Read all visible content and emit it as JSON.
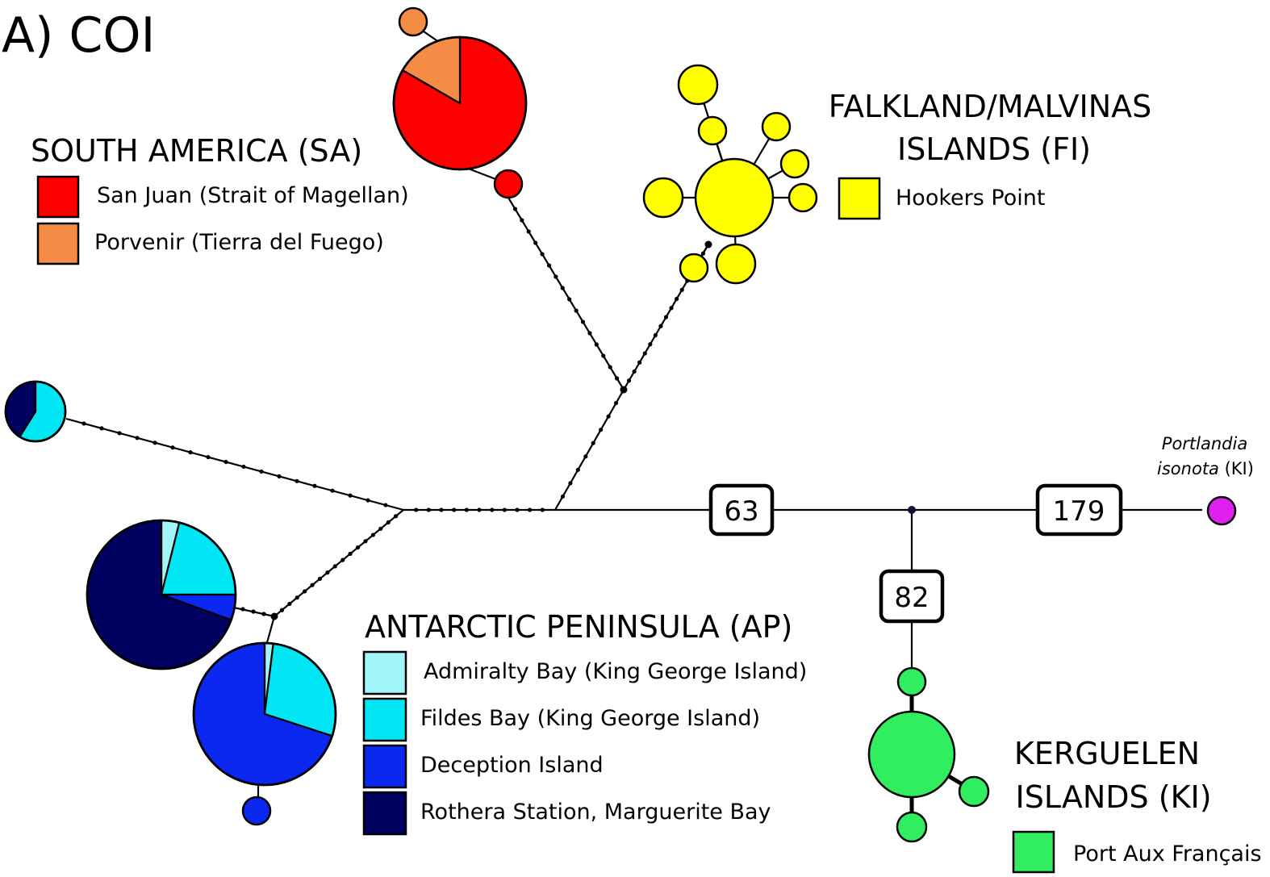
{
  "title": "A) COI",
  "colors": {
    "san_juan": "#ff0000",
    "porvenir": "#f58c46",
    "hookers_point": "#ffff00",
    "admiralty_bay": "#a0f6f8",
    "fildes_bay": "#00e6f4",
    "deception_island": "#0a28f0",
    "rothera": "#000060",
    "port_aux_francais": "#30ee60",
    "portlandia": "#e020f0"
  },
  "regions": {
    "south_america": {
      "heading": "SOUTH AMERICA (SA)",
      "items": [
        {
          "label": "San Juan (Strait of Magellan)",
          "color": "#ff0000"
        },
        {
          "label": "Porvenir (Tierra del Fuego)",
          "color": "#f58c46"
        }
      ]
    },
    "falkland": {
      "heading_line1": "FALKLAND/MALVINAS",
      "heading_line2": "ISLANDS (FI)",
      "items": [
        {
          "label": "Hookers Point",
          "color": "#ffff00"
        }
      ]
    },
    "antarctic": {
      "heading": "ANTARCTIC PENINSULA (AP)",
      "items": [
        {
          "label": "Admiralty Bay (King George Island)",
          "color": "#a0f6f8"
        },
        {
          "label": "Fildes Bay (King George Island)",
          "color": "#00e6f4"
        },
        {
          "label": "Deception Island",
          "color": "#0a28f0"
        },
        {
          "label": "Rothera Station, Marguerite Bay",
          "color": "#000060"
        }
      ]
    },
    "kerguelen": {
      "heading_line1": "KERGUELEN",
      "heading_line2": "ISLANDS (KI)",
      "items": [
        {
          "label": "Port Aux Français",
          "color": "#30ee60"
        }
      ]
    }
  },
  "outgroup": {
    "line1": "Portlandia",
    "line2_italic": "isonota",
    "line2_rest": " (KI)"
  },
  "mutation_steps": {
    "main": "63",
    "outgroup": "179",
    "kerguelen": "82"
  }
}
